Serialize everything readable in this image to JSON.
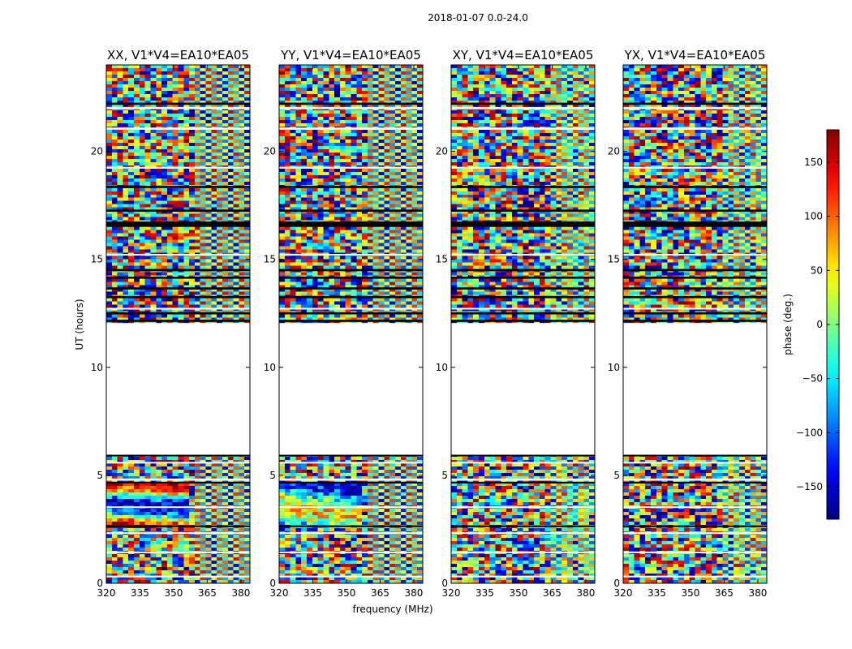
{
  "chart_data": {
    "type": "heatmap",
    "suptitle": "2018-01-07 0.0-24.0",
    "xlabel": "frequency (MHz)",
    "ylabel": "UT (hours)",
    "xlim": [
      320,
      384
    ],
    "ylim": [
      0,
      24
    ],
    "xticks": [
      320,
      335,
      350,
      365,
      380
    ],
    "yticks": [
      0,
      5,
      10,
      15,
      20
    ],
    "panels": [
      {
        "title": "XX, V1*V4=EA10*EA05",
        "style": "xx"
      },
      {
        "title": "YY, V1*V4=EA10*EA05",
        "style": "yy"
      },
      {
        "title": "XY, V1*V4=EA10*EA05",
        "style": "cross"
      },
      {
        "title": "YX, V1*V4=EA10*EA05",
        "style": "cross"
      }
    ],
    "colorbar": {
      "label": "phase (deg.)",
      "range": [
        -180,
        180
      ],
      "ticks": [
        150,
        100,
        50,
        0,
        -50,
        -100,
        -150
      ],
      "colormap": "jet"
    },
    "data_gaps_hours": [
      [
        5.95,
        12.05
      ]
    ],
    "flagged_bands_hours": [
      [
        0.3,
        0.35
      ],
      [
        1.4,
        1.47
      ],
      [
        2.3,
        2.36
      ],
      [
        3.5,
        3.56
      ],
      [
        4.75,
        4.85
      ],
      [
        5.55,
        5.62
      ],
      [
        12.7,
        12.75
      ],
      [
        15.2,
        15.25
      ],
      [
        19.2,
        19.28
      ],
      [
        21.0,
        21.1
      ],
      [
        21.95,
        22.05
      ]
    ],
    "black_bands_hours": [
      [
        2.6,
        2.68
      ],
      [
        4.62,
        4.7
      ],
      [
        5.9,
        5.95
      ],
      [
        12.1,
        12.2
      ],
      [
        12.45,
        12.55
      ],
      [
        13.2,
        13.3
      ],
      [
        13.6,
        13.7
      ],
      [
        14.1,
        14.2
      ],
      [
        14.45,
        14.55
      ],
      [
        16.5,
        16.75
      ],
      [
        17.2,
        17.3
      ],
      [
        18.3,
        18.4
      ],
      [
        22.15,
        22.25
      ]
    ]
  }
}
